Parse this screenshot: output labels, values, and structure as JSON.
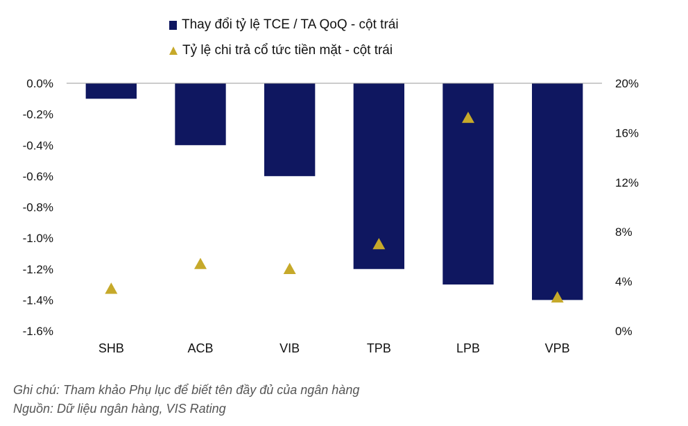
{
  "chart_data": {
    "type": "bar",
    "categories": [
      "SHB",
      "ACB",
      "VIB",
      "TPB",
      "LPB",
      "VPB"
    ],
    "series": [
      {
        "name": "Thay đổi tỷ lệ TCE / TA QoQ - cột trái",
        "kind": "bar",
        "axis": "left",
        "color": "#0f1760",
        "values": [
          -0.1,
          -0.4,
          -0.6,
          -1.2,
          -1.3,
          -1.4
        ]
      },
      {
        "name": "Tỷ lệ chi trả cổ tức tiền mặt - cột trái",
        "kind": "scatter",
        "marker": "triangle",
        "axis": "right",
        "color": "#c6a92a",
        "values": [
          3.4,
          5.4,
          5.0,
          7.0,
          17.2,
          2.7
        ]
      }
    ],
    "left_axis": {
      "ylim": [
        -1.6,
        0
      ],
      "ticks": [
        0,
        -0.2,
        -0.4,
        -0.6,
        -0.8,
        -1.0,
        -1.2,
        -1.4,
        -1.6
      ],
      "tick_labels": [
        "0.0%",
        "-0.2%",
        "-0.4%",
        "-0.6%",
        "-0.8%",
        "-1.0%",
        "-1.2%",
        "-1.4%",
        "-1.6%"
      ]
    },
    "right_axis": {
      "ylim": [
        0,
        20
      ],
      "ticks": [
        20,
        16,
        12,
        8,
        4,
        0
      ],
      "tick_labels": [
        "20%",
        "16%",
        "12%",
        "8%",
        "4%",
        "0%"
      ]
    },
    "legend_position": "top"
  },
  "notes": {
    "line1": "Ghi chú: Tham khảo Phụ lục để biết tên đầy đủ của ngân hàng",
    "line2": "Nguồn: Dữ liệu ngân hàng, VIS Rating"
  }
}
